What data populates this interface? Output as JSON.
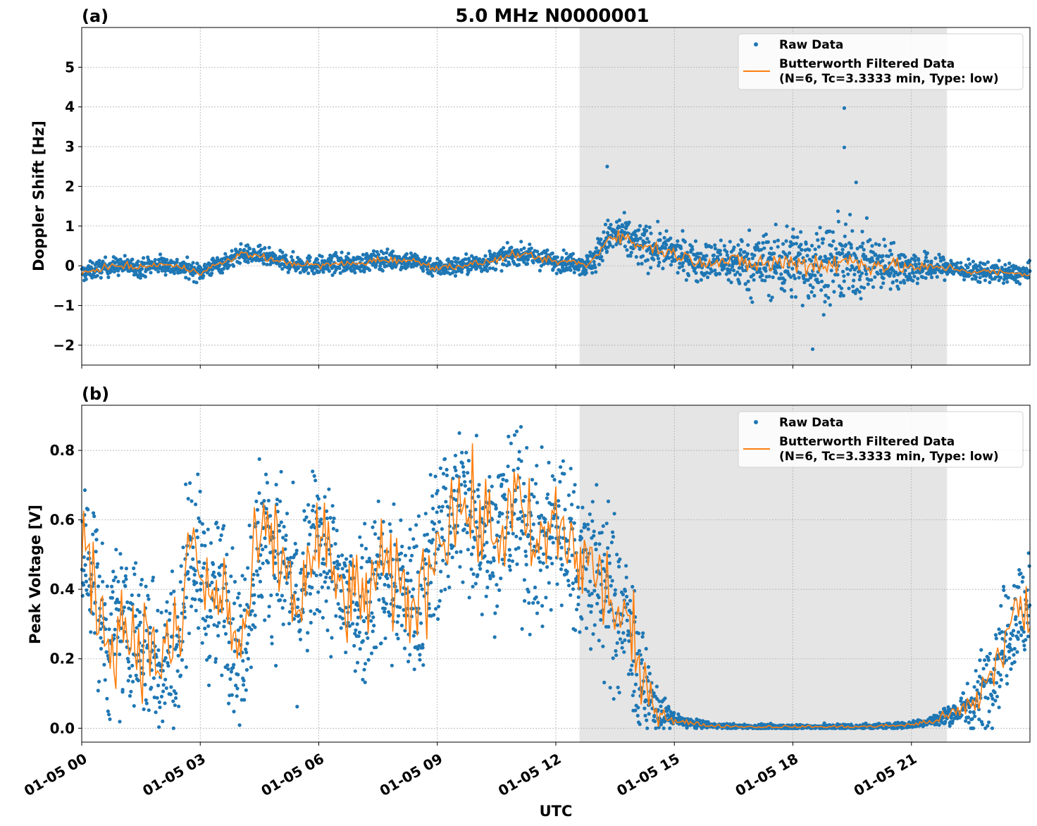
{
  "figure": {
    "title": "5.0 MHz N0000001",
    "xlabel": "UTC",
    "colors": {
      "raw": "#1f77b4",
      "filtered": "#ff7f0e",
      "shade": "#e5e5e5",
      "grid": "#b0b0b0"
    }
  },
  "chart_data": [
    {
      "type": "scatter",
      "panel_label": "(a)",
      "ylabel": "Doppler Shift [Hz]",
      "xlim_hours": [
        0,
        24
      ],
      "ylim": [
        -2.5,
        6.0
      ],
      "yticks": [
        -2,
        -1,
        0,
        1,
        2,
        3,
        4,
        5
      ],
      "ytick_labels": [
        "−2",
        "−1",
        "0",
        "1",
        "2",
        "3",
        "4",
        "5"
      ],
      "shaded_span_hours": [
        12.6,
        21.9
      ],
      "grid": true,
      "legend": {
        "placement": "upper right",
        "entries": [
          "Raw Data",
          "Butterworth Filtered Data",
          "(N=6, Tc=3.3333 min, Type: low)"
        ]
      },
      "series": [
        {
          "name": "Raw Data",
          "marker": "point",
          "trend_hours": [
            0,
            0.5,
            1,
            1.5,
            2,
            2.5,
            3,
            3.5,
            3.8,
            4,
            4.5,
            5,
            5.5,
            6,
            6.5,
            7,
            7.5,
            8,
            8.5,
            9,
            9.5,
            10,
            10.5,
            11,
            11.5,
            12,
            12.5,
            12.8,
            13,
            13.3,
            13.6,
            13.9,
            14.2,
            14.5,
            15,
            15.5,
            16,
            16.5,
            17,
            17.5,
            18,
            18.5,
            19,
            19.5,
            20,
            20.5,
            21,
            21.5,
            22,
            22.5,
            23,
            23.5,
            24
          ],
          "trend_values": [
            -0.2,
            -0.05,
            0.0,
            -0.05,
            0.05,
            -0.05,
            -0.15,
            0.05,
            0.15,
            0.3,
            0.25,
            0.1,
            0.05,
            0.0,
            0.05,
            0.05,
            0.15,
            0.15,
            0.1,
            -0.05,
            0.0,
            0.05,
            0.15,
            0.3,
            0.2,
            0.1,
            0.1,
            0.0,
            0.2,
            0.7,
            0.8,
            0.6,
            0.5,
            0.45,
            0.3,
            0.15,
            0.1,
            0.1,
            0.05,
            0.05,
            0.1,
            0.05,
            0.05,
            0.1,
            0.05,
            0.0,
            -0.05,
            -0.05,
            -0.05,
            -0.15,
            -0.15,
            -0.2,
            -0.2
          ],
          "spread_hours": [
            0,
            12.6,
            13.0,
            14.0,
            15.0,
            16.0,
            17.0,
            18.5,
            19.5,
            20.5,
            21.5,
            22.0,
            24
          ],
          "spread_values": [
            0.2,
            0.22,
            0.35,
            0.5,
            0.4,
            0.45,
            0.7,
            0.9,
            0.85,
            0.5,
            0.3,
            0.22,
            0.22
          ],
          "outliers": [
            {
              "x": 19.3,
              "y": 3.97
            },
            {
              "x": 19.3,
              "y": 2.98
            },
            {
              "x": 13.3,
              "y": 2.5
            },
            {
              "x": 18.5,
              "y": -2.1
            },
            {
              "x": 19.6,
              "y": 2.1
            }
          ]
        },
        {
          "name": "Butterworth Filtered Data",
          "line": true
        }
      ]
    },
    {
      "type": "scatter",
      "panel_label": "(b)",
      "ylabel": "Peak Voltage [V]",
      "xlim_hours": [
        0,
        24
      ],
      "ylim": [
        -0.04,
        0.93
      ],
      "yticks": [
        0.0,
        0.2,
        0.4,
        0.6,
        0.8
      ],
      "ytick_labels": [
        "0.0",
        "0.2",
        "0.4",
        "0.6",
        "0.8"
      ],
      "shaded_span_hours": [
        12.6,
        21.9
      ],
      "grid": true,
      "legend": {
        "placement": "upper right",
        "entries": [
          "Raw Data",
          "Butterworth Filtered Data",
          "(N=6, Tc=3.3333 min, Type: low)"
        ]
      },
      "series": [
        {
          "name": "Raw Data",
          "marker": "point",
          "trend_hours": [
            0,
            0.3,
            0.6,
            1,
            1.5,
            2,
            2.5,
            2.7,
            3,
            3.3,
            3.6,
            4,
            4.5,
            5,
            5.5,
            6,
            6.5,
            7,
            7.5,
            8,
            8.5,
            9,
            9.5,
            10,
            10.5,
            11,
            11.5,
            12,
            12.5,
            13,
            13.5,
            13.8,
            14.1,
            14.4,
            14.7,
            15,
            15.5,
            16,
            17,
            18,
            19,
            20,
            21,
            21.5,
            22,
            22.5,
            23,
            23.5,
            24
          ],
          "trend_values": [
            0.5,
            0.45,
            0.25,
            0.3,
            0.25,
            0.2,
            0.25,
            0.55,
            0.45,
            0.35,
            0.4,
            0.2,
            0.55,
            0.5,
            0.35,
            0.55,
            0.4,
            0.35,
            0.45,
            0.4,
            0.35,
            0.55,
            0.65,
            0.6,
            0.55,
            0.65,
            0.5,
            0.6,
            0.5,
            0.45,
            0.35,
            0.3,
            0.15,
            0.08,
            0.04,
            0.025,
            0.012,
            0.007,
            0.004,
            0.004,
            0.004,
            0.005,
            0.01,
            0.02,
            0.04,
            0.06,
            0.15,
            0.3,
            0.35
          ],
          "spread_hours": [
            0,
            13.5,
            14.0,
            14.5,
            15.0,
            16.0,
            21.0,
            22.0,
            22.8,
            24
          ],
          "spread_values": [
            0.2,
            0.22,
            0.18,
            0.06,
            0.02,
            0.006,
            0.008,
            0.025,
            0.1,
            0.18
          ]
        },
        {
          "name": "Butterworth Filtered Data",
          "line": true
        }
      ]
    }
  ],
  "x_axis": {
    "tick_hours": [
      0,
      3,
      6,
      9,
      12,
      15,
      18,
      21
    ],
    "tick_labels": [
      "01-05 00",
      "01-05 03",
      "01-05 06",
      "01-05 09",
      "01-05 12",
      "01-05 15",
      "01-05 18",
      "01-05 21"
    ]
  }
}
